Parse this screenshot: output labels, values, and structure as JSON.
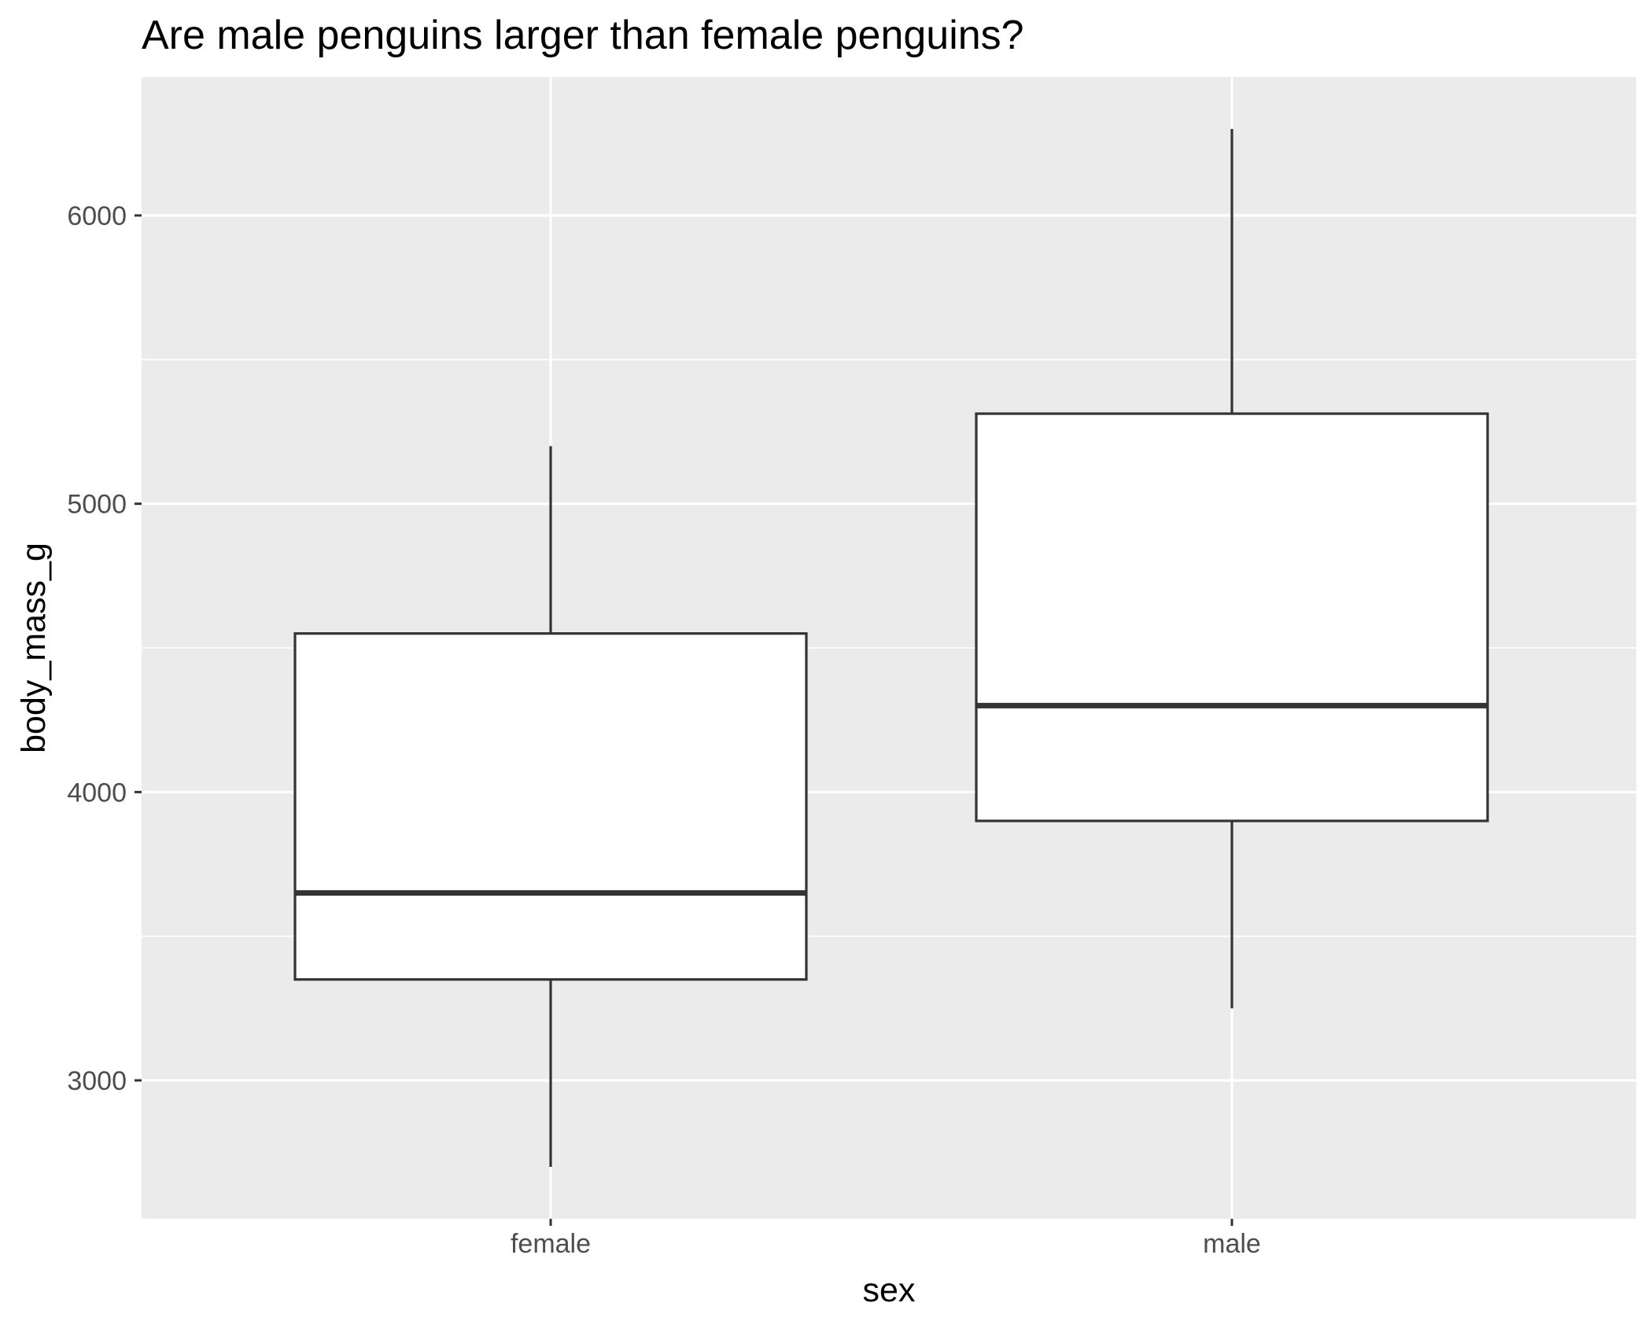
{
  "chart_data": {
    "type": "boxplot",
    "title": "Are male penguins larger than female penguins?",
    "xlabel": "sex",
    "ylabel": "body_mass_g",
    "categories": [
      "female",
      "male"
    ],
    "boxes": [
      {
        "category": "female",
        "whisker_low": 2700,
        "q1": 3350,
        "median": 3650,
        "q3": 4550,
        "whisker_high": 5200
      },
      {
        "category": "male",
        "whisker_low": 3250,
        "q1": 3900,
        "median": 4300,
        "q3": 5312.5,
        "whisker_high": 6300
      }
    ],
    "y_ticks": [
      3000,
      4000,
      5000,
      6000
    ],
    "ylim": [
      2520,
      6480
    ],
    "grid": true,
    "legend": "none",
    "colors": {
      "panel_background": "#ebebeb",
      "grid_line": "#ffffff",
      "box_fill": "#ffffff",
      "box_outline": "#333333",
      "tick_label": "#4d4d4d"
    }
  }
}
